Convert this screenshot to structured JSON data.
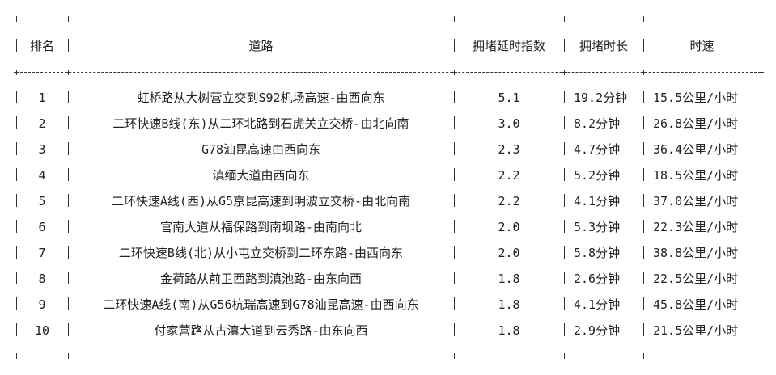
{
  "headers": {
    "rank": "排名",
    "road": "道路",
    "index": "拥堵延时指数",
    "duration": "拥堵时长",
    "speed": "时速"
  },
  "rows": [
    {
      "rank": "1",
      "road": "虹桥路从大树营立交到S92机场高速-由西向东",
      "index": "5.1",
      "duration": "19.2分钟",
      "speed": "15.5公里/小时"
    },
    {
      "rank": "2",
      "road": "二环快速B线(东)从二环北路到石虎关立交桥-由北向南",
      "index": "3.0",
      "duration": "8.2分钟",
      "speed": "26.8公里/小时"
    },
    {
      "rank": "3",
      "road": "G78汕昆高速由西向东",
      "index": "2.3",
      "duration": "4.7分钟",
      "speed": "36.4公里/小时"
    },
    {
      "rank": "4",
      "road": "滇缅大道由西向东",
      "index": "2.2",
      "duration": "5.2分钟",
      "speed": "18.5公里/小时"
    },
    {
      "rank": "5",
      "road": "二环快速A线(西)从G5京昆高速到明波立交桥-由北向南",
      "index": "2.2",
      "duration": "4.1分钟",
      "speed": "37.0公里/小时"
    },
    {
      "rank": "6",
      "road": "官南大道从福保路到南坝路-由南向北",
      "index": "2.0",
      "duration": "5.3分钟",
      "speed": "22.3公里/小时"
    },
    {
      "rank": "7",
      "road": "二环快速B线(北)从小屯立交桥到二环东路-由西向东",
      "index": "2.0",
      "duration": "5.8分钟",
      "speed": "38.8公里/小时"
    },
    {
      "rank": "8",
      "road": "金荷路从前卫西路到滇池路-由东向西",
      "index": "1.8",
      "duration": "2.6分钟",
      "speed": "22.5公里/小时"
    },
    {
      "rank": "9",
      "road": "二环快速A线(南)从G56杭瑞高速到G78汕昆高速-由西向东",
      "index": "1.8",
      "duration": "4.1分钟",
      "speed": "45.8公里/小时"
    },
    {
      "rank": "10",
      "road": "付家营路从古滇大道到云秀路-由东向西",
      "index": "1.8",
      "duration": "2.9分钟",
      "speed": "21.5公里/小时"
    }
  ]
}
